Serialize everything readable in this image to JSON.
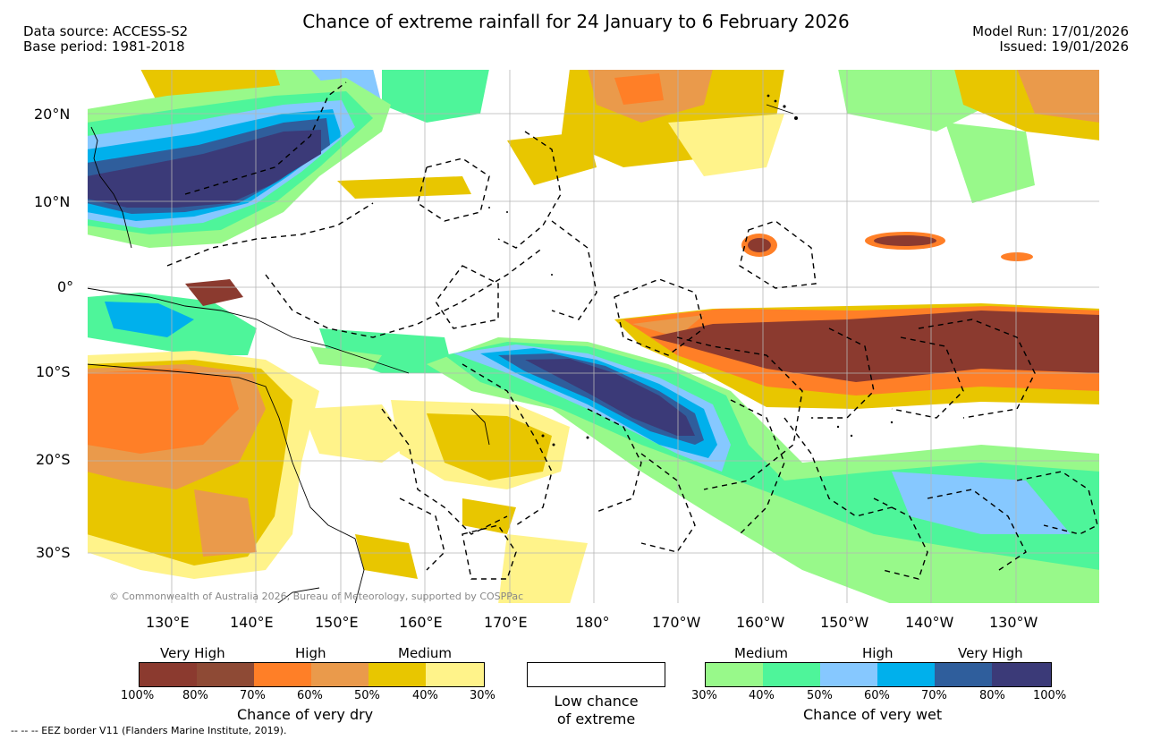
{
  "header": {
    "title": "Chance of extreme rainfall for 24 January to 6 February 2026",
    "data_source": "Data source: ACCESS-S2",
    "base_period": "Base period: 1981-2018",
    "model_run": "Model Run: 17/01/2026",
    "issued": "Issued: 19/01/2026"
  },
  "map": {
    "lat_labels": [
      "20°N",
      "10°N",
      "0°",
      "10°S",
      "20°S",
      "30°S"
    ],
    "lon_labels": [
      "130°E",
      "140°E",
      "150°E",
      "160°E",
      "170°E",
      "180°",
      "170°W",
      "160°W",
      "150°W",
      "140°W",
      "130°W"
    ],
    "copyright": "© Commonwealth of Australia 2026, Bureau of Meteorology, supported by COSPPac",
    "colors": {
      "dry_100": "#8b3a2f",
      "dry_80": "#8e4a35",
      "dry_70": "#ff7f27",
      "dry_60": "#ea9a4b",
      "dry_50": "#e8c600",
      "dry_40": "#fff38a",
      "wet_30": "#98f98a",
      "wet_40": "#4ef59a",
      "wet_50": "#86c8ff",
      "wet_60": "#00b0ec",
      "wet_70": "#2f5e9c",
      "wet_80": "#3b3a78"
    }
  },
  "legend": {
    "dry": {
      "category_labels": [
        "Very High",
        "High",
        "Medium"
      ],
      "percent_labels": [
        "100%",
        "80%",
        "70%",
        "60%",
        "50%",
        "40%",
        "30%"
      ],
      "title": "Chance of very dry",
      "colors": [
        "#8b3a2f",
        "#8e4a35",
        "#ff7f27",
        "#ea9a4b",
        "#e8c600",
        "#fff38a"
      ]
    },
    "low": {
      "line1": "Low chance",
      "line2": "of extreme"
    },
    "wet": {
      "category_labels": [
        "Medium",
        "High",
        "Very High"
      ],
      "percent_labels": [
        "30%",
        "40%",
        "50%",
        "60%",
        "70%",
        "80%",
        "100%"
      ],
      "title": "Chance of very wet",
      "colors": [
        "#98f98a",
        "#4ef59a",
        "#86c8ff",
        "#00b0ec",
        "#2f5e9c",
        "#3b3a78"
      ]
    }
  },
  "footer": {
    "eez_note": "--  --  -- EEZ border V11 (Flanders Marine Institute, 2019)."
  }
}
